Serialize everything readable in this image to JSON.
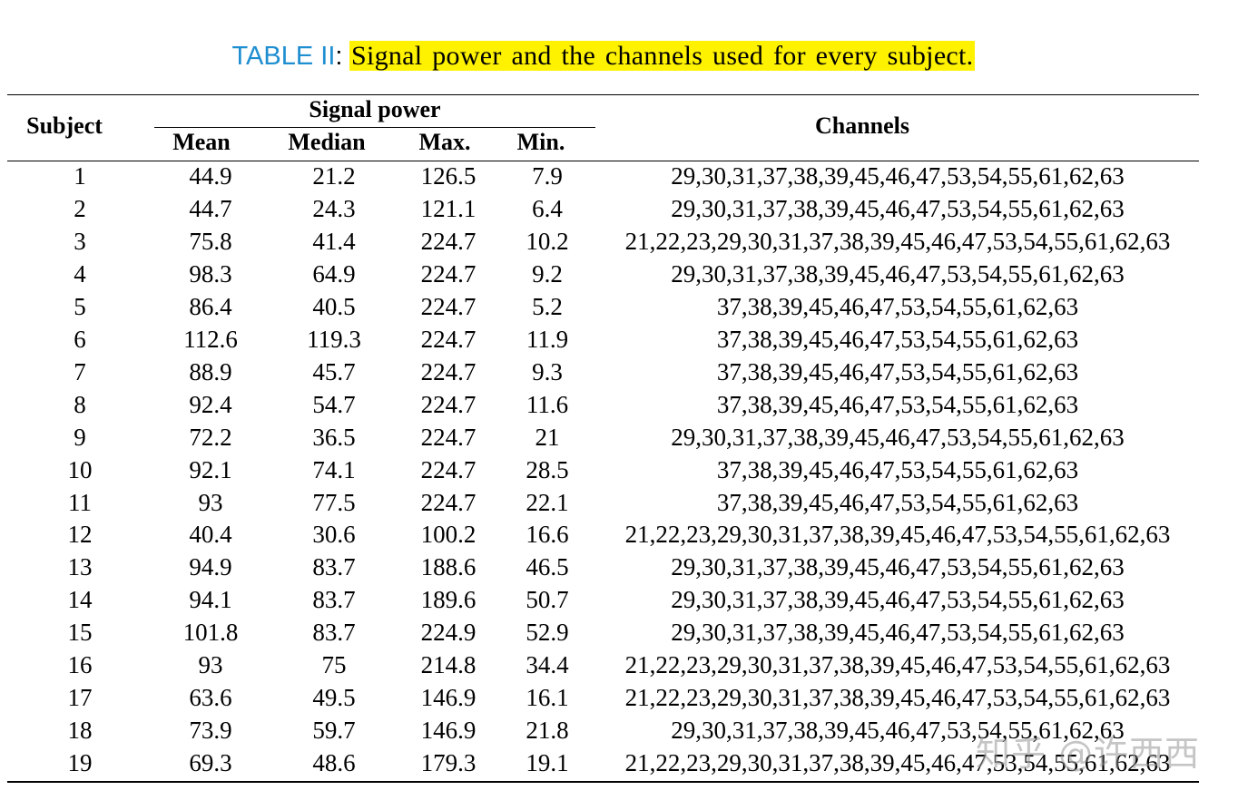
{
  "caption": {
    "label": "TABLE II",
    "colon": ":",
    "text": "Signal power and the channels used for every subject.",
    "label_color": "#1f8ed0",
    "highlight_color": "#fff200"
  },
  "table": {
    "headers": {
      "subject": "Subject",
      "signal_power": "Signal power",
      "mean": "Mean",
      "median": "Median",
      "max": "Max.",
      "min": "Min.",
      "channels": "Channels"
    },
    "rows": [
      {
        "subject": "1",
        "mean": "44.9",
        "median": "21.2",
        "max": "126.5",
        "min": "7.9",
        "channels": "29,30,31,37,38,39,45,46,47,53,54,55,61,62,63"
      },
      {
        "subject": "2",
        "mean": "44.7",
        "median": "24.3",
        "max": "121.1",
        "min": "6.4",
        "channels": "29,30,31,37,38,39,45,46,47,53,54,55,61,62,63"
      },
      {
        "subject": "3",
        "mean": "75.8",
        "median": "41.4",
        "max": "224.7",
        "min": "10.2",
        "channels": "21,22,23,29,30,31,37,38,39,45,46,47,53,54,55,61,62,63"
      },
      {
        "subject": "4",
        "mean": "98.3",
        "median": "64.9",
        "max": "224.7",
        "min": "9.2",
        "channels": "29,30,31,37,38,39,45,46,47,53,54,55,61,62,63"
      },
      {
        "subject": "5",
        "mean": "86.4",
        "median": "40.5",
        "max": "224.7",
        "min": "5.2",
        "channels": "37,38,39,45,46,47,53,54,55,61,62,63"
      },
      {
        "subject": "6",
        "mean": "112.6",
        "median": "119.3",
        "max": "224.7",
        "min": "11.9",
        "channels": "37,38,39,45,46,47,53,54,55,61,62,63"
      },
      {
        "subject": "7",
        "mean": "88.9",
        "median": "45.7",
        "max": "224.7",
        "min": "9.3",
        "channels": "37,38,39,45,46,47,53,54,55,61,62,63"
      },
      {
        "subject": "8",
        "mean": "92.4",
        "median": "54.7",
        "max": "224.7",
        "min": "11.6",
        "channels": "37,38,39,45,46,47,53,54,55,61,62,63"
      },
      {
        "subject": "9",
        "mean": "72.2",
        "median": "36.5",
        "max": "224.7",
        "min": "21",
        "channels": "29,30,31,37,38,39,45,46,47,53,54,55,61,62,63"
      },
      {
        "subject": "10",
        "mean": "92.1",
        "median": "74.1",
        "max": "224.7",
        "min": "28.5",
        "channels": "37,38,39,45,46,47,53,54,55,61,62,63"
      },
      {
        "subject": "11",
        "mean": "93",
        "median": "77.5",
        "max": "224.7",
        "min": "22.1",
        "channels": "37,38,39,45,46,47,53,54,55,61,62,63"
      },
      {
        "subject": "12",
        "mean": "40.4",
        "median": "30.6",
        "max": "100.2",
        "min": "16.6",
        "channels": "21,22,23,29,30,31,37,38,39,45,46,47,53,54,55,61,62,63"
      },
      {
        "subject": "13",
        "mean": "94.9",
        "median": "83.7",
        "max": "188.6",
        "min": "46.5",
        "channels": "29,30,31,37,38,39,45,46,47,53,54,55,61,62,63"
      },
      {
        "subject": "14",
        "mean": "94.1",
        "median": "83.7",
        "max": "189.6",
        "min": "50.7",
        "channels": "29,30,31,37,38,39,45,46,47,53,54,55,61,62,63"
      },
      {
        "subject": "15",
        "mean": "101.8",
        "median": "83.7",
        "max": "224.9",
        "min": "52.9",
        "channels": "29,30,31,37,38,39,45,46,47,53,54,55,61,62,63"
      },
      {
        "subject": "16",
        "mean": "93",
        "median": "75",
        "max": "214.8",
        "min": "34.4",
        "channels": "21,22,23,29,30,31,37,38,39,45,46,47,53,54,55,61,62,63"
      },
      {
        "subject": "17",
        "mean": "63.6",
        "median": "49.5",
        "max": "146.9",
        "min": "16.1",
        "channels": "21,22,23,29,30,31,37,38,39,45,46,47,53,54,55,61,62,63"
      },
      {
        "subject": "18",
        "mean": "73.9",
        "median": "59.7",
        "max": "146.9",
        "min": "21.8",
        "channels": "29,30,31,37,38,39,45,46,47,53,54,55,61,62,63"
      },
      {
        "subject": "19",
        "mean": "69.3",
        "median": "48.6",
        "max": "179.3",
        "min": "19.1",
        "channels": "21,22,23,29,30,31,37,38,39,45,46,47,53,54,55,61,62,63"
      }
    ]
  },
  "watermark": "知乎 @许西西"
}
